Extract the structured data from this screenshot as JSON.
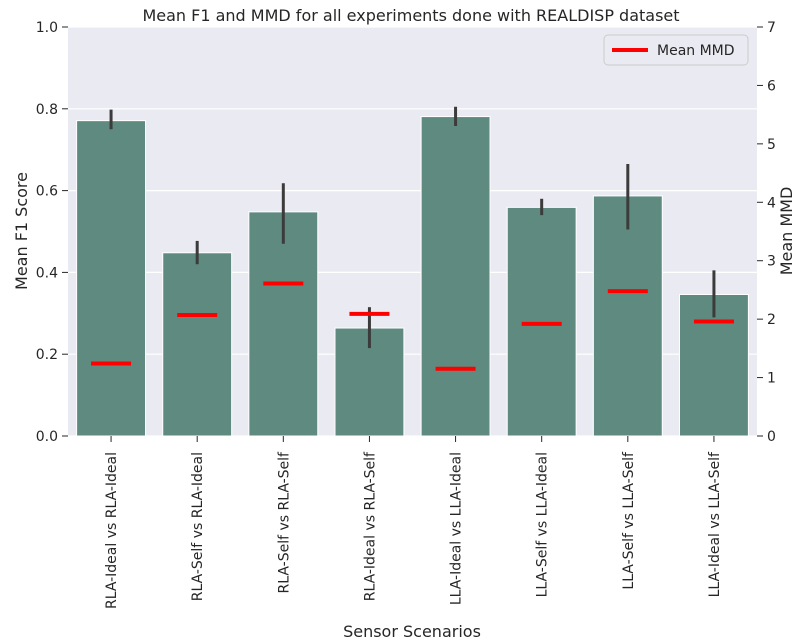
{
  "chart_data": {
    "type": "bar",
    "title": "Mean F1 and MMD for all experiments done with REALDISP dataset",
    "xlabel": "Sensor Scenarios",
    "ylabel": "Mean F1 Score",
    "y2label": "Mean MMD",
    "ylim": [
      0,
      1.0
    ],
    "y2lim": [
      0,
      7
    ],
    "yticks": [
      "0.0",
      "0.2",
      "0.4",
      "0.6",
      "0.8",
      "1.0"
    ],
    "y2ticks": [
      "0",
      "1",
      "2",
      "3",
      "4",
      "5",
      "6",
      "7"
    ],
    "grid": true,
    "legend_position": "top-right",
    "categories": [
      "RLA-Ideal vs RLA-Ideal",
      "RLA-Self vs RLA-Ideal",
      "RLA-Self vs RLA-Self",
      "RLA-Ideal vs RLA-Self",
      "LLA-Ideal vs LLA-Ideal",
      "LLA-Self vs LLA-Ideal",
      "LLA-Self vs LLA-Self",
      "LLA-Ideal vs LLA-Self"
    ],
    "series": [
      {
        "kind": "bar",
        "axis": "left",
        "values": [
          0.771,
          0.448,
          0.548,
          0.264,
          0.781,
          0.559,
          0.587,
          0.346
        ],
        "error_low": [
          0.75,
          0.42,
          0.47,
          0.215,
          0.758,
          0.54,
          0.505,
          0.29
        ],
        "error_high": [
          0.798,
          0.477,
          0.618,
          0.315,
          0.805,
          0.58,
          0.665,
          0.405
        ],
        "color": "#5f8a7f",
        "error_color": "#3b3b3b"
      },
      {
        "name": "Mean MMD",
        "kind": "marker",
        "axis": "right",
        "values": [
          1.24,
          2.07,
          2.61,
          2.09,
          1.15,
          1.92,
          2.48,
          1.96
        ],
        "color": "#ff0000"
      }
    ],
    "background_color": "#eaeaf2",
    "grid_color": "#ffffff"
  }
}
